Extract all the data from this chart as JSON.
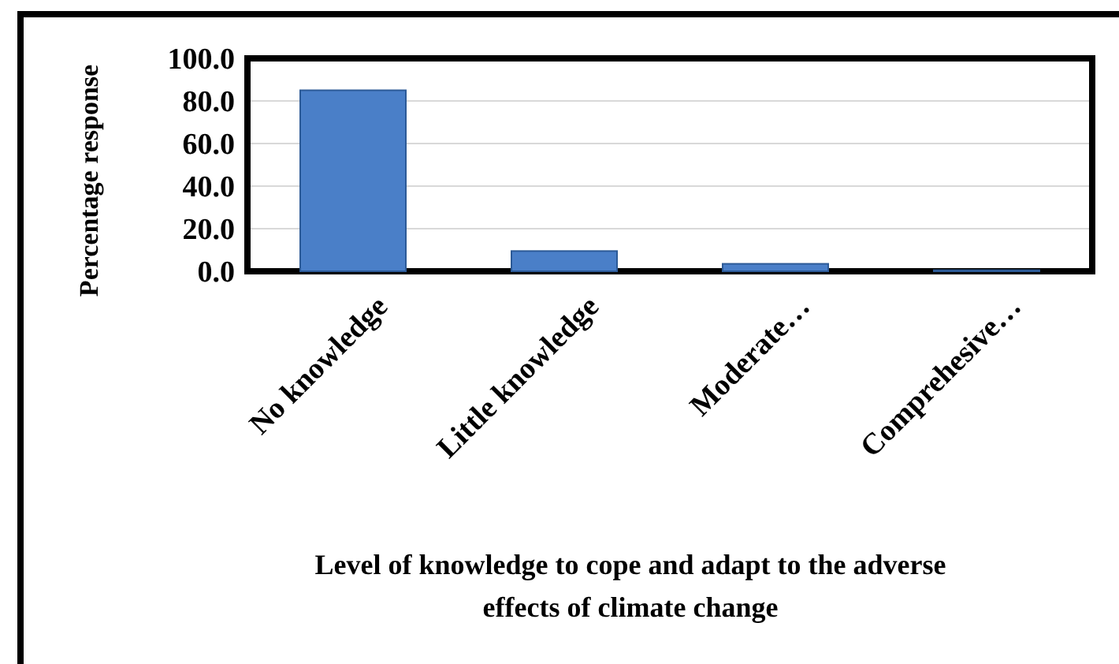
{
  "chart_data": {
    "type": "bar",
    "xlabel": "Level of knowledge to cope and adapt to the adverse effects of climate change",
    "ylabel": "Percentage response",
    "categories": [
      "No knowledge",
      "Little knowledge",
      "Moderate…",
      "Comprehesive…"
    ],
    "values": [
      85.0,
      9.5,
      3.5,
      0.5
    ],
    "color": "#4a7fc8",
    "ylim": [
      0,
      100
    ],
    "yticks": [
      {
        "value": 0,
        "label": "0.0"
      },
      {
        "value": 20,
        "label": "20.0"
      },
      {
        "value": 40,
        "label": "40.0"
      },
      {
        "value": 60,
        "label": "60.0"
      },
      {
        "value": 80,
        "label": "80.0"
      },
      {
        "value": 100,
        "label": "100.0"
      }
    ],
    "grid": true
  }
}
